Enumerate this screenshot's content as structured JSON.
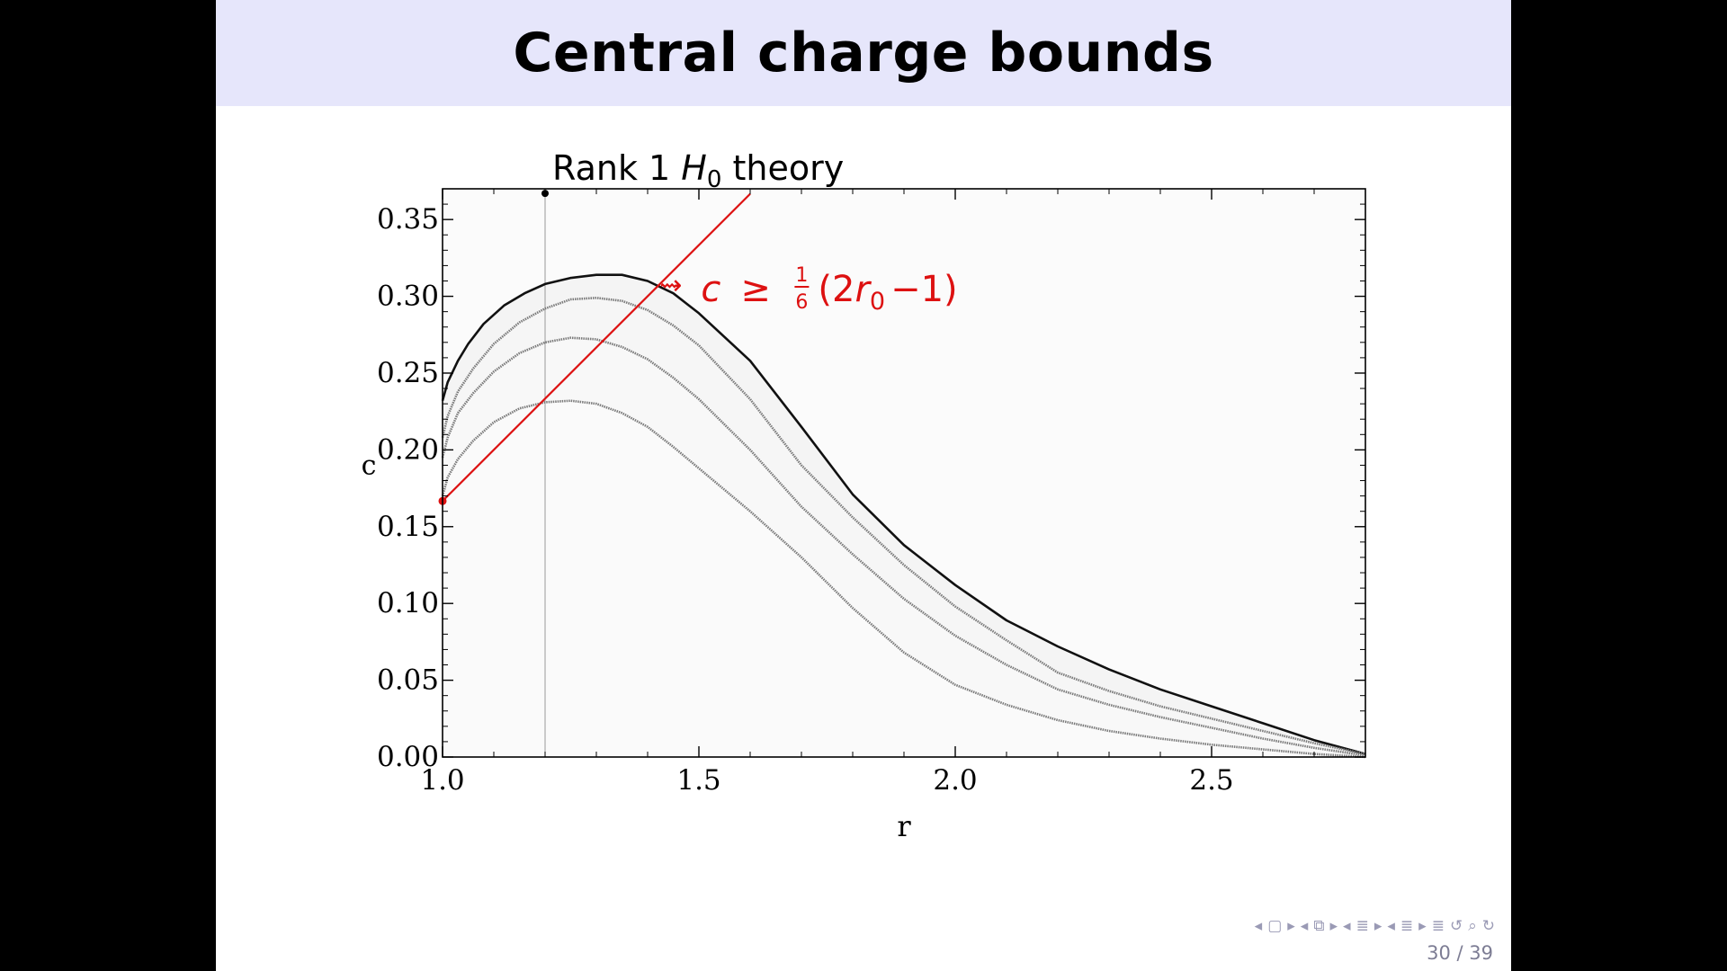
{
  "slide": {
    "title": "Central charge bounds",
    "page_number": "30 / 39",
    "nav_icons": [
      "frame-prev-icon",
      "frame-icon",
      "frame-next-icon",
      "subsection-prev-icon",
      "subsection-icon",
      "subsection-next-icon",
      "section-prev-icon",
      "section-icon",
      "section-next-icon",
      "slide-prev-icon",
      "slide-icon",
      "slide-next-icon",
      "align-icon",
      "back-icon",
      "search-icon",
      "forward-icon"
    ]
  },
  "chart_data": {
    "type": "area",
    "title": "Rank 1 H₀ theory",
    "title_parts": {
      "pre": "Rank 1 ",
      "var": "H",
      "sub": "0",
      "post": " theory"
    },
    "xlabel": "r",
    "ylabel": "c",
    "xlim": [
      1.0,
      2.8
    ],
    "ylim": [
      0.0,
      0.37
    ],
    "xticks": [
      1.0,
      1.5,
      2.0,
      2.5
    ],
    "xtick_labels": [
      "1.0",
      "1.5",
      "2.0",
      "2.5"
    ],
    "yticks": [
      0.0,
      0.05,
      0.1,
      0.15,
      0.2,
      0.25,
      0.3,
      0.35
    ],
    "ytick_labels": [
      "0.00",
      "0.05",
      "0.10",
      "0.15",
      "0.20",
      "0.25",
      "0.30",
      "0.35"
    ],
    "grid": false,
    "series": [
      {
        "color": "#111111",
        "points": [
          [
            1.0,
            0.232
          ],
          [
            1.01,
            0.244
          ],
          [
            1.03,
            0.258
          ],
          [
            1.05,
            0.269
          ],
          [
            1.08,
            0.282
          ],
          [
            1.12,
            0.294
          ],
          [
            1.16,
            0.302
          ],
          [
            1.2,
            0.308
          ],
          [
            1.25,
            0.312
          ],
          [
            1.3,
            0.314
          ],
          [
            1.35,
            0.314
          ],
          [
            1.4,
            0.31
          ],
          [
            1.45,
            0.302
          ],
          [
            1.5,
            0.289
          ],
          [
            1.6,
            0.258
          ],
          [
            1.7,
            0.215
          ],
          [
            1.8,
            0.171
          ],
          [
            1.9,
            0.138
          ],
          [
            2.0,
            0.112
          ],
          [
            2.1,
            0.089
          ],
          [
            2.2,
            0.072
          ],
          [
            2.3,
            0.057
          ],
          [
            2.4,
            0.044
          ],
          [
            2.5,
            0.033
          ],
          [
            2.6,
            0.022
          ],
          [
            2.7,
            0.011
          ],
          [
            2.8,
            0.002
          ]
        ]
      },
      {
        "color": "#7a7a7a",
        "points": [
          [
            1.0,
            0.208
          ],
          [
            1.01,
            0.222
          ],
          [
            1.03,
            0.238
          ],
          [
            1.06,
            0.253
          ],
          [
            1.1,
            0.269
          ],
          [
            1.15,
            0.283
          ],
          [
            1.2,
            0.292
          ],
          [
            1.25,
            0.298
          ],
          [
            1.3,
            0.299
          ],
          [
            1.35,
            0.297
          ],
          [
            1.4,
            0.291
          ],
          [
            1.45,
            0.281
          ],
          [
            1.5,
            0.268
          ],
          [
            1.6,
            0.233
          ],
          [
            1.7,
            0.19
          ],
          [
            1.8,
            0.156
          ],
          [
            1.9,
            0.125
          ],
          [
            2.0,
            0.098
          ],
          [
            2.1,
            0.076
          ],
          [
            2.2,
            0.055
          ],
          [
            2.3,
            0.043
          ],
          [
            2.4,
            0.033
          ],
          [
            2.5,
            0.025
          ],
          [
            2.6,
            0.017
          ],
          [
            2.7,
            0.009
          ],
          [
            2.8,
            0.002
          ]
        ]
      },
      {
        "color": "#7a7a7a",
        "points": [
          [
            1.0,
            0.195
          ],
          [
            1.01,
            0.208
          ],
          [
            1.03,
            0.224
          ],
          [
            1.06,
            0.237
          ],
          [
            1.1,
            0.251
          ],
          [
            1.15,
            0.263
          ],
          [
            1.2,
            0.27
          ],
          [
            1.25,
            0.273
          ],
          [
            1.3,
            0.272
          ],
          [
            1.35,
            0.267
          ],
          [
            1.4,
            0.259
          ],
          [
            1.45,
            0.247
          ],
          [
            1.5,
            0.233
          ],
          [
            1.6,
            0.2
          ],
          [
            1.7,
            0.163
          ],
          [
            1.8,
            0.132
          ],
          [
            1.9,
            0.103
          ],
          [
            2.0,
            0.079
          ],
          [
            2.1,
            0.06
          ],
          [
            2.2,
            0.044
          ],
          [
            2.3,
            0.034
          ],
          [
            2.4,
            0.026
          ],
          [
            2.5,
            0.019
          ],
          [
            2.6,
            0.012
          ],
          [
            2.7,
            0.006
          ],
          [
            2.8,
            0.001
          ]
        ]
      },
      {
        "color": "#7a7a7a",
        "points": [
          [
            1.0,
            0.17
          ],
          [
            1.01,
            0.182
          ],
          [
            1.03,
            0.194
          ],
          [
            1.06,
            0.206
          ],
          [
            1.1,
            0.218
          ],
          [
            1.15,
            0.227
          ],
          [
            1.2,
            0.231
          ],
          [
            1.25,
            0.232
          ],
          [
            1.3,
            0.23
          ],
          [
            1.35,
            0.224
          ],
          [
            1.4,
            0.215
          ],
          [
            1.45,
            0.202
          ],
          [
            1.5,
            0.188
          ],
          [
            1.6,
            0.16
          ],
          [
            1.7,
            0.13
          ],
          [
            1.8,
            0.097
          ],
          [
            1.9,
            0.068
          ],
          [
            2.0,
            0.047
          ],
          [
            2.1,
            0.034
          ],
          [
            2.2,
            0.024
          ],
          [
            2.3,
            0.017
          ],
          [
            2.4,
            0.012
          ],
          [
            2.5,
            0.008
          ],
          [
            2.6,
            0.005
          ],
          [
            2.7,
            0.002
          ],
          [
            2.8,
            0.0
          ]
        ]
      }
    ],
    "vertical_line": {
      "x": 1.2
    },
    "top_dot": {
      "x": 1.2,
      "y": 0.367
    },
    "bound_line": {
      "color": "#dd1111",
      "from": [
        1.0,
        0.1667
      ],
      "to": [
        1.6,
        0.3667
      ]
    },
    "annotation": {
      "arrow": "⇝",
      "lhs": "c",
      "rel": "≥",
      "frac_num": "1",
      "frac_den": "6",
      "paren_open": "(2",
      "var": "r",
      "sub": "0",
      "tail": "−1)",
      "color": "#dd1111",
      "anchor": [
        1.42,
        0.305
      ]
    }
  }
}
